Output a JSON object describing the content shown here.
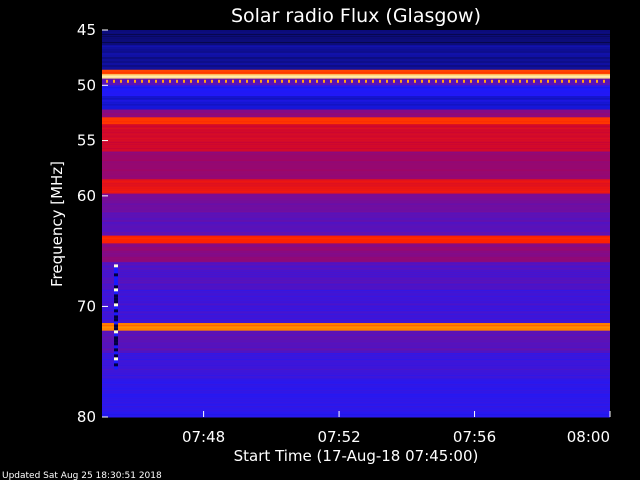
{
  "chart_data": {
    "type": "heatmap",
    "title": "Solar radio Flux (Glasgow)",
    "xlabel": "Start Time (17-Aug-18 07:45:00)",
    "ylabel": "Frequency [MHz]",
    "x_range": [
      "07:45:00",
      "08:00:00"
    ],
    "y_range_mhz": [
      45,
      80
    ],
    "y_axis_inverted": true,
    "x_ticks": [
      "07:48",
      "07:52",
      "07:56",
      "08:00"
    ],
    "y_ticks": [
      45,
      50,
      55,
      60,
      70,
      80
    ],
    "colormap": [
      "#000000",
      "#1a1aff",
      "#6a10a8",
      "#c0003c",
      "#ff2200",
      "#ff9900",
      "#ffffd0"
    ],
    "bands": [
      {
        "f_start": 45.0,
        "f_end": 46.4,
        "level": 0.08
      },
      {
        "f_start": 46.4,
        "f_end": 48.6,
        "level": 0.1
      },
      {
        "f_start": 48.6,
        "f_end": 49.0,
        "level": 0.72
      },
      {
        "f_start": 49.0,
        "f_end": 49.4,
        "level": 0.95
      },
      {
        "f_start": 49.4,
        "f_end": 50.0,
        "level": 0.3
      },
      {
        "f_start": 50.0,
        "f_end": 51.0,
        "level": 0.18
      },
      {
        "f_start": 51.0,
        "f_end": 52.2,
        "level": 0.14
      },
      {
        "f_start": 52.2,
        "f_end": 52.9,
        "level": 0.4
      },
      {
        "f_start": 52.9,
        "f_end": 53.5,
        "level": 0.7
      },
      {
        "f_start": 53.5,
        "f_end": 56.0,
        "level": 0.55
      },
      {
        "f_start": 56.0,
        "f_end": 58.5,
        "level": 0.42
      },
      {
        "f_start": 58.5,
        "f_end": 59.8,
        "level": 0.6
      },
      {
        "f_start": 59.8,
        "f_end": 61.5,
        "level": 0.35
      },
      {
        "f_start": 61.5,
        "f_end": 63.6,
        "level": 0.3
      },
      {
        "f_start": 63.6,
        "f_end": 64.3,
        "level": 0.66
      },
      {
        "f_start": 64.3,
        "f_end": 66.0,
        "level": 0.4
      },
      {
        "f_start": 66.0,
        "f_end": 68.5,
        "level": 0.28
      },
      {
        "f_start": 68.5,
        "f_end": 71.5,
        "level": 0.25
      },
      {
        "f_start": 71.5,
        "f_end": 72.2,
        "level": 0.8
      },
      {
        "f_start": 72.2,
        "f_end": 74.2,
        "level": 0.3
      },
      {
        "f_start": 74.2,
        "f_end": 76.5,
        "level": 0.24
      },
      {
        "f_start": 76.5,
        "f_end": 80.0,
        "level": 0.2
      }
    ],
    "grid": false
  },
  "footer": {
    "updated": "Updated Sat Aug 25 18:30:51 2018"
  }
}
